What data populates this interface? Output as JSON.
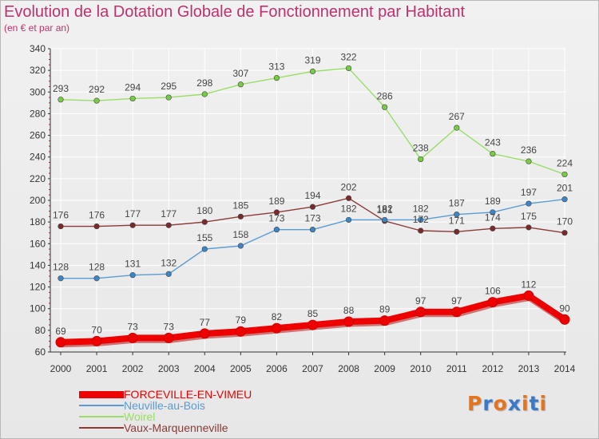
{
  "title": "Evolution de la Dotation Globale de Fonctionnement par Habitant",
  "subtitle": "(en € et par an)",
  "logo_text": "Proxiti",
  "logo_colors": [
    "#e8741a",
    "#3a78c9",
    "#e8741a",
    "#3a78c9",
    "#e8741a",
    "#3a78c9",
    "#e8741a"
  ],
  "colors": {
    "axis": "#333333",
    "grid": "#ffffff",
    "tick_mark": "#cc2222",
    "label_text": "#444444"
  },
  "chart_data": {
    "type": "line",
    "title": "Evolution de la Dotation Globale de Fonctionnement par Habitant",
    "subtitle": "(en € et par an)",
    "xlabel": "",
    "ylabel": "",
    "x": [
      "2000",
      "2001",
      "2002",
      "2003",
      "2004",
      "2005",
      "2006",
      "2007",
      "2008",
      "2009",
      "2010",
      "2011",
      "2012",
      "2013",
      "2014"
    ],
    "ylim": [
      60,
      340
    ],
    "yticks": [
      60,
      80,
      100,
      120,
      140,
      160,
      180,
      200,
      220,
      240,
      260,
      280,
      300,
      320,
      340
    ],
    "grid": true,
    "legend_position": "bottom-left",
    "series": [
      {
        "name": "FORCEVILLE-EN-VIMEU",
        "color": "#ee0000",
        "marker_color": "#ee0000",
        "label_color": "#444444",
        "values": [
          69,
          70,
          73,
          73,
          77,
          79,
          82,
          85,
          88,
          89,
          97,
          97,
          106,
          112,
          90
        ]
      },
      {
        "name": "Neuville-au-Bois",
        "color": "#5a9bd4",
        "marker_color": "#3d86c6",
        "label_color": "#444444",
        "values": [
          128,
          128,
          131,
          132,
          155,
          158,
          173,
          173,
          182,
          182,
          182,
          187,
          189,
          197,
          201
        ]
      },
      {
        "name": "Woirel",
        "color": "#99dd66",
        "marker_color": "#77cc44",
        "label_color": "#444444",
        "values": [
          293,
          292,
          294,
          295,
          298,
          307,
          313,
          319,
          322,
          286,
          238,
          267,
          243,
          236,
          224
        ]
      },
      {
        "name": "Vaux-Marquenneville",
        "color": "#8b3a3a",
        "marker_color": "#7a2a2a",
        "label_color": "#444444",
        "values": [
          176,
          176,
          177,
          177,
          180,
          185,
          189,
          194,
          202,
          181,
          172,
          171,
          174,
          175,
          170
        ]
      }
    ]
  }
}
